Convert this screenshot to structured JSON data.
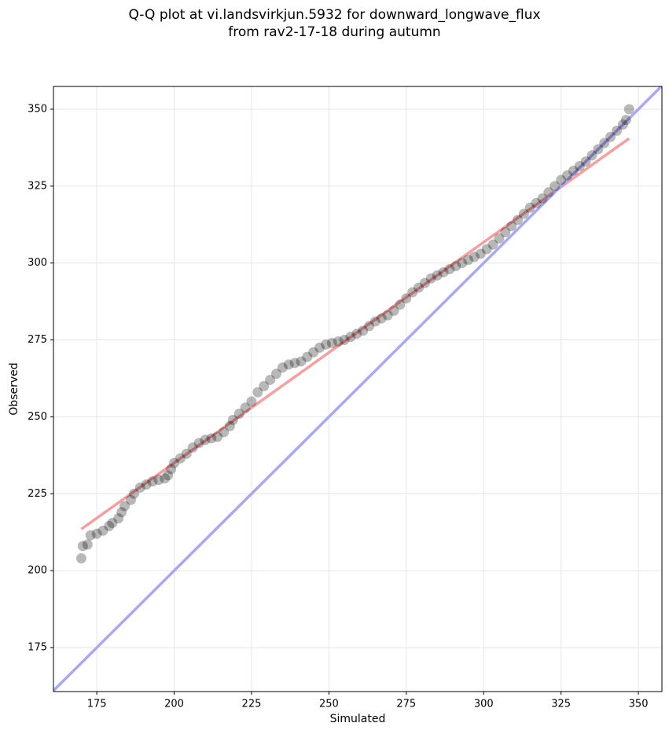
{
  "chart_data": {
    "type": "scatter",
    "title": "Q-Q plot at vi.landsvirkjun.5932 for downward_longwave_flux\nfrom rav2-17-18 during autumn",
    "xlabel": "Simulated",
    "ylabel": "Observed",
    "xlim": [
      161,
      357.6
    ],
    "ylim": [
      160.7,
      357.4
    ],
    "xticks": [
      175,
      200,
      225,
      250,
      275,
      300,
      325,
      350
    ],
    "yticks": [
      175,
      200,
      225,
      250,
      275,
      300,
      325,
      350
    ],
    "grid": true,
    "color": "#000000",
    "x": [
      170,
      170.5,
      172,
      173,
      175,
      177,
      179,
      180,
      182,
      183,
      184,
      186,
      187,
      189,
      191,
      193,
      195,
      197,
      198,
      199,
      200,
      202,
      204,
      206,
      208,
      210,
      212,
      214,
      216,
      218,
      219,
      221,
      223,
      225,
      227,
      229,
      231,
      233,
      235,
      237,
      239,
      241,
      243,
      245,
      247,
      249,
      251,
      253,
      255,
      257,
      259,
      261,
      263,
      265,
      267,
      269,
      271,
      273,
      275,
      277,
      279,
      281,
      283,
      285,
      287,
      289,
      291,
      293,
      295,
      297,
      299,
      301,
      303,
      305,
      307,
      309,
      311,
      313,
      315,
      317,
      319,
      321,
      323,
      325,
      327,
      329,
      331,
      333,
      335,
      337,
      339,
      341,
      343,
      345,
      346,
      347
    ],
    "values": [
      204,
      208,
      208.5,
      211.5,
      212,
      213,
      214.5,
      215.5,
      217,
      219,
      221,
      223,
      225,
      227,
      228,
      229,
      229.5,
      230,
      231,
      233,
      235,
      236.5,
      238,
      240,
      241.5,
      242.5,
      243,
      243.5,
      245,
      247,
      249,
      251,
      253,
      255,
      258,
      260,
      262,
      264,
      266,
      267,
      267.5,
      268,
      269.5,
      271,
      272.5,
      273.5,
      274,
      274.5,
      275,
      276,
      277,
      278,
      279.5,
      281,
      282,
      283,
      284.5,
      286.5,
      288.5,
      290.5,
      292,
      293.5,
      295,
      296,
      297,
      298,
      299,
      300,
      301,
      302,
      303,
      304.5,
      306,
      308,
      310,
      312,
      314,
      316,
      318,
      319.5,
      321,
      323,
      325,
      327,
      328.5,
      330,
      331.5,
      333,
      335,
      337,
      339,
      341,
      343,
      345,
      346.5,
      350
    ],
    "reference_lines": [
      {
        "x": [
          170,
          347
        ],
        "values": [
          213.5,
          340.5
        ],
        "color": "#f4a0a0"
      },
      {
        "x": [
          161,
          357.6
        ],
        "values": [
          161,
          357.6
        ],
        "color": "#a8a8f4"
      }
    ]
  }
}
